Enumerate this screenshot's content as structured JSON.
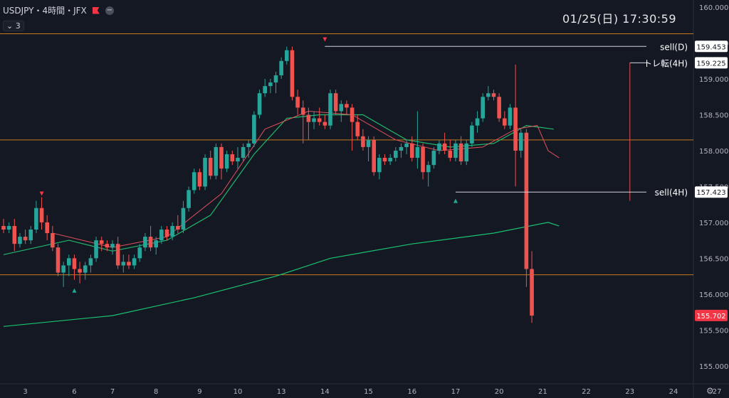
{
  "header": {
    "symbol": "USDJPY・4時間・JFX",
    "indicator_count": "3",
    "datetime": "01/25(日)   17:30:59"
  },
  "icons": {
    "flag": "flag-icon",
    "minus": "minus-circle-icon",
    "settings": "gear-icon",
    "chevron": "chevron-icon"
  },
  "colors": {
    "bull": "#26a69a",
    "bear": "#ef5350",
    "ma_short": "#e0505a",
    "ma_mid": "#1fb86c",
    "ma_long": "#19c36f",
    "level": "#c8791e",
    "marker_line": "#d1d4dc"
  },
  "chart_data": {
    "type": "candlestick",
    "title": "USDJPY 4H",
    "ylim": [
      154.75,
      160.1
    ],
    "y_ticks": [
      155.0,
      155.5,
      156.0,
      156.5,
      157.0,
      157.5,
      158.0,
      158.5,
      159.0,
      159.5,
      160.0
    ],
    "x_ticks": [
      {
        "label": "3",
        "i": 4
      },
      {
        "label": "6",
        "i": 13
      },
      {
        "label": "7",
        "i": 20
      },
      {
        "label": "8",
        "i": 28
      },
      {
        "label": "9",
        "i": 36
      },
      {
        "label": "10",
        "i": 43
      },
      {
        "label": "13",
        "i": 51
      },
      {
        "label": "14",
        "i": 59
      },
      {
        "label": "15",
        "i": 67
      },
      {
        "label": "16",
        "i": 75
      },
      {
        "label": "17",
        "i": 83
      },
      {
        "label": "20",
        "i": 91
      },
      {
        "label": "21",
        "i": 99
      },
      {
        "label": "22",
        "i": 107
      },
      {
        "label": "23",
        "i": 115
      },
      {
        "label": "24",
        "i": 123
      },
      {
        "label": "27",
        "i": 131
      }
    ],
    "candles": [
      [
        156.95,
        157.05,
        156.85,
        156.9
      ],
      [
        156.9,
        157.0,
        156.85,
        156.95
      ],
      [
        156.95,
        157.05,
        156.6,
        156.7
      ],
      [
        156.7,
        156.85,
        156.65,
        156.8
      ],
      [
        156.8,
        156.9,
        156.7,
        156.75
      ],
      [
        156.75,
        156.95,
        156.7,
        156.9
      ],
      [
        156.9,
        157.3,
        156.85,
        157.2
      ],
      [
        157.2,
        157.35,
        156.9,
        157.0
      ],
      [
        157.0,
        157.1,
        156.75,
        156.85
      ],
      [
        156.85,
        156.95,
        156.6,
        156.65
      ],
      [
        156.65,
        156.7,
        156.25,
        156.3
      ],
      [
        156.3,
        156.45,
        156.1,
        156.4
      ],
      [
        156.4,
        156.55,
        156.25,
        156.5
      ],
      [
        156.5,
        156.55,
        156.2,
        156.35
      ],
      [
        156.35,
        156.45,
        156.15,
        156.3
      ],
      [
        156.3,
        156.45,
        156.2,
        156.4
      ],
      [
        156.4,
        156.55,
        156.3,
        156.5
      ],
      [
        156.5,
        156.8,
        156.45,
        156.75
      ],
      [
        156.75,
        156.8,
        156.6,
        156.7
      ],
      [
        156.7,
        156.75,
        156.6,
        156.65
      ],
      [
        156.65,
        156.75,
        156.55,
        156.7
      ],
      [
        156.7,
        156.8,
        156.35,
        156.4
      ],
      [
        156.4,
        156.55,
        156.3,
        156.45
      ],
      [
        156.45,
        156.55,
        156.35,
        156.4
      ],
      [
        156.4,
        156.55,
        156.35,
        156.5
      ],
      [
        156.5,
        156.7,
        156.45,
        156.65
      ],
      [
        156.65,
        156.85,
        156.6,
        156.8
      ],
      [
        156.8,
        156.95,
        156.6,
        156.65
      ],
      [
        156.65,
        156.8,
        156.55,
        156.75
      ],
      [
        156.75,
        156.95,
        156.7,
        156.9
      ],
      [
        156.9,
        156.95,
        156.75,
        156.8
      ],
      [
        156.8,
        157.0,
        156.75,
        156.95
      ],
      [
        156.95,
        157.1,
        156.85,
        156.9
      ],
      [
        156.9,
        157.3,
        156.85,
        157.2
      ],
      [
        157.2,
        157.5,
        157.15,
        157.45
      ],
      [
        157.45,
        157.75,
        157.4,
        157.7
      ],
      [
        157.7,
        157.75,
        157.45,
        157.5
      ],
      [
        157.5,
        157.95,
        157.45,
        157.9
      ],
      [
        157.9,
        158.0,
        157.6,
        157.65
      ],
      [
        157.65,
        158.1,
        157.6,
        158.05
      ],
      [
        158.05,
        158.1,
        157.6,
        157.75
      ],
      [
        157.75,
        158.0,
        157.7,
        157.95
      ],
      [
        157.95,
        158.0,
        157.8,
        157.85
      ],
      [
        157.85,
        158.05,
        157.75,
        157.9
      ],
      [
        157.9,
        158.1,
        157.85,
        158.05
      ],
      [
        158.05,
        158.15,
        157.9,
        158.1
      ],
      [
        158.1,
        158.55,
        158.05,
        158.5
      ],
      [
        158.5,
        158.85,
        158.45,
        158.8
      ],
      [
        158.8,
        159.0,
        158.75,
        158.9
      ],
      [
        158.9,
        159.0,
        158.8,
        158.95
      ],
      [
        158.95,
        159.1,
        158.8,
        159.05
      ],
      [
        159.05,
        159.3,
        159.0,
        159.25
      ],
      [
        159.25,
        159.45,
        159.2,
        159.4
      ],
      [
        159.4,
        159.45,
        158.7,
        158.75
      ],
      [
        158.75,
        158.85,
        158.5,
        158.6
      ],
      [
        158.6,
        158.7,
        158.1,
        158.5
      ],
      [
        158.5,
        158.6,
        158.15,
        158.4
      ],
      [
        158.4,
        158.55,
        158.3,
        158.45
      ],
      [
        158.45,
        158.6,
        158.35,
        158.4
      ],
      [
        158.4,
        158.5,
        158.3,
        158.35
      ],
      [
        158.35,
        158.85,
        158.3,
        158.8
      ],
      [
        158.8,
        158.85,
        158.5,
        158.55
      ],
      [
        158.55,
        158.7,
        158.4,
        158.65
      ],
      [
        158.65,
        158.7,
        158.5,
        158.6
      ],
      [
        158.6,
        158.65,
        158.0,
        158.4
      ],
      [
        158.4,
        158.5,
        158.15,
        158.2
      ],
      [
        158.2,
        158.3,
        158.0,
        158.05
      ],
      [
        158.05,
        158.2,
        157.85,
        158.15
      ],
      [
        158.15,
        158.2,
        157.65,
        157.7
      ],
      [
        157.7,
        157.95,
        157.6,
        157.9
      ],
      [
        157.9,
        157.95,
        157.8,
        157.85
      ],
      [
        157.85,
        157.95,
        157.8,
        157.9
      ],
      [
        157.9,
        158.05,
        157.85,
        158.0
      ],
      [
        158.0,
        158.1,
        157.9,
        158.05
      ],
      [
        158.05,
        158.15,
        157.95,
        158.1
      ],
      [
        158.1,
        158.2,
        157.85,
        157.9
      ],
      [
        157.9,
        158.55,
        157.75,
        158.05
      ],
      [
        158.05,
        158.1,
        157.6,
        157.7
      ],
      [
        157.7,
        157.85,
        157.5,
        157.8
      ],
      [
        157.8,
        158.05,
        157.75,
        158.0
      ],
      [
        158.0,
        158.15,
        157.95,
        158.1
      ],
      [
        158.1,
        158.25,
        157.95,
        158.0
      ],
      [
        158.0,
        158.15,
        157.85,
        157.9
      ],
      [
        157.9,
        158.15,
        157.85,
        158.1
      ],
      [
        158.1,
        158.2,
        157.8,
        157.85
      ],
      [
        157.85,
        158.15,
        157.8,
        158.1
      ],
      [
        158.1,
        158.4,
        158.05,
        158.35
      ],
      [
        158.35,
        158.55,
        158.25,
        158.45
      ],
      [
        158.45,
        158.8,
        158.4,
        158.75
      ],
      [
        158.75,
        158.9,
        158.7,
        158.8
      ],
      [
        158.8,
        158.85,
        158.7,
        158.75
      ],
      [
        158.75,
        158.8,
        158.4,
        158.45
      ],
      [
        158.45,
        158.55,
        158.3,
        158.35
      ],
      [
        158.35,
        158.65,
        158.3,
        158.6
      ],
      [
        158.6,
        159.2,
        157.5,
        158.0
      ],
      [
        158.0,
        158.3,
        157.9,
        158.25
      ],
      [
        158.25,
        158.3,
        156.1,
        156.35
      ],
      [
        156.35,
        156.6,
        155.6,
        155.7
      ]
    ],
    "ma_short": [
      [
        9,
        156.85
      ],
      [
        20,
        156.65
      ],
      [
        30,
        156.8
      ],
      [
        40,
        157.4
      ],
      [
        48,
        158.3
      ],
      [
        56,
        158.55
      ],
      [
        64,
        158.5
      ],
      [
        72,
        158.15
      ],
      [
        80,
        158.0
      ],
      [
        88,
        158.05
      ],
      [
        94,
        158.3
      ],
      [
        98,
        158.35
      ],
      [
        100,
        158.0
      ],
      [
        102,
        157.9
      ]
    ],
    "ma_mid": [
      [
        0,
        156.55
      ],
      [
        12,
        156.75
      ],
      [
        20,
        156.6
      ],
      [
        30,
        156.75
      ],
      [
        38,
        157.1
      ],
      [
        46,
        157.95
      ],
      [
        52,
        158.45
      ],
      [
        58,
        158.5
      ],
      [
        66,
        158.5
      ],
      [
        74,
        158.15
      ],
      [
        82,
        158.05
      ],
      [
        90,
        158.1
      ],
      [
        96,
        158.35
      ],
      [
        101,
        158.3
      ]
    ],
    "ma_long": [
      [
        0,
        155.55
      ],
      [
        20,
        155.7
      ],
      [
        35,
        155.95
      ],
      [
        50,
        156.25
      ],
      [
        60,
        156.5
      ],
      [
        75,
        156.7
      ],
      [
        90,
        156.85
      ],
      [
        100,
        157.0
      ],
      [
        102,
        156.95
      ]
    ],
    "h_levels": [
      159.63,
      158.15,
      156.27
    ],
    "markers": [
      {
        "i": 7,
        "price": 157.4,
        "dir": "down"
      },
      {
        "i": 13,
        "price": 156.05,
        "dir": "up"
      },
      {
        "i": 59,
        "price": 159.55,
        "dir": "down"
      },
      {
        "i": 83,
        "price": 157.3,
        "dir": "up"
      }
    ],
    "annotations": [
      {
        "label": "sell(D)",
        "price": 159.453,
        "tag": "159.453",
        "from_i": 59
      },
      {
        "label": "トレ転(4H)",
        "price": 159.225,
        "tag": "159.225",
        "from_i": 115
      },
      {
        "label": "sell(4H)",
        "price": 157.423,
        "tag": "157.423",
        "from_i": 83
      }
    ],
    "last_price": {
      "price": 155.702,
      "tag": "155.702"
    }
  }
}
